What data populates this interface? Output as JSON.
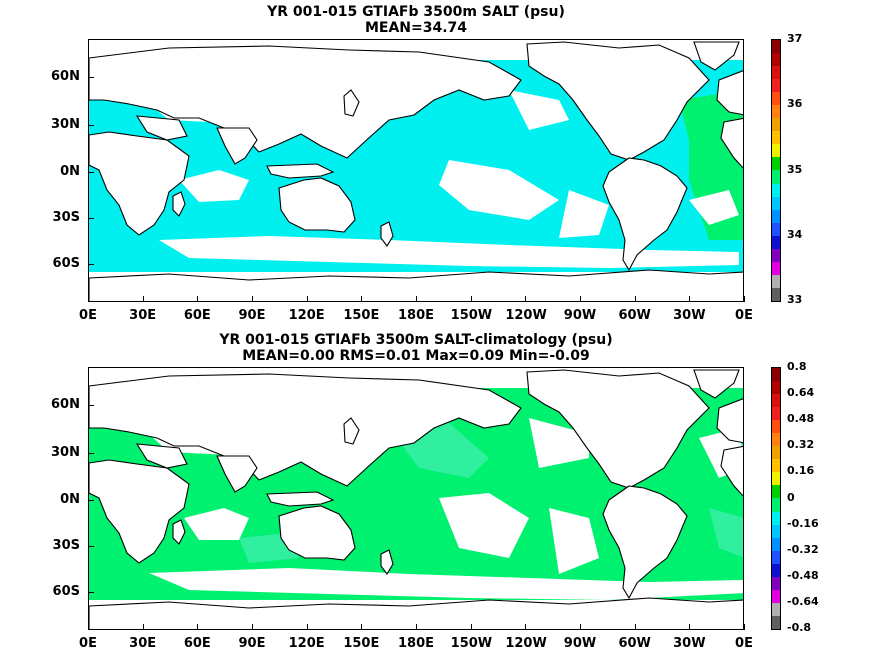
{
  "panels": [
    {
      "title1": "YR 001-015 GTIAFb 3500m SALT (psu)",
      "title2": "MEAN=34.74",
      "fill": "#00f0f0",
      "fill2": "#00f070",
      "lat_labels": [
        "60N",
        "30N",
        "0N",
        "30S",
        "60S"
      ],
      "lon_labels": [
        "0E",
        "30E",
        "60E",
        "90E",
        "120E",
        "150E",
        "180E",
        "150W",
        "120W",
        "90W",
        "60W",
        "30W",
        "0E"
      ],
      "colorbar": {
        "labels": [
          "37",
          "36",
          "35",
          "34",
          "33"
        ],
        "colors": [
          "#8b0000",
          "#b00000",
          "#d81010",
          "#f02020",
          "#ff5010",
          "#ff8010",
          "#f0a000",
          "#ffc000",
          "#f0f000",
          "#00d000",
          "#00f070",
          "#00f0f0",
          "#00c8ff",
          "#0090ff",
          "#2050ff",
          "#1010d0",
          "#8000c0",
          "#e000e0",
          "#b0b0b0",
          "#606060"
        ]
      }
    },
    {
      "title1": "YR 001-015 GTIAFb 3500m SALT-climatology (psu)",
      "title2": "MEAN=0.00   RMS=0.01   Max=0.09   Min=-0.09",
      "fill": "#00f070",
      "fill2": "#30f0a0",
      "lat_labels": [
        "60N",
        "30N",
        "0N",
        "30S",
        "60S"
      ],
      "lon_labels": [
        "0E",
        "30E",
        "60E",
        "90E",
        "120E",
        "150E",
        "180E",
        "150W",
        "120W",
        "90W",
        "60W",
        "30W",
        "0E"
      ],
      "colorbar": {
        "labels": [
          "0.8",
          "0.64",
          "0.48",
          "0.32",
          "0.16",
          "0",
          "-0.16",
          "-0.32",
          "-0.48",
          "-0.64",
          "-0.8"
        ],
        "colors": [
          "#8b0000",
          "#b00000",
          "#d81010",
          "#f02020",
          "#ff5010",
          "#ff8010",
          "#f0a000",
          "#ffc000",
          "#f0f000",
          "#00d000",
          "#00f070",
          "#00f0f0",
          "#00c8ff",
          "#0090ff",
          "#2050ff",
          "#1010d0",
          "#8000c0",
          "#e000e0",
          "#b0b0b0",
          "#606060"
        ]
      }
    }
  ]
}
